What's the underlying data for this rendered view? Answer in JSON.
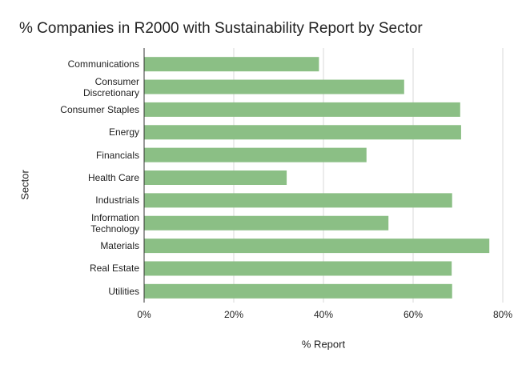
{
  "chart_data": {
    "type": "bar",
    "orientation": "horizontal",
    "title": "% Companies in R2000 with Sustainability Report by Sector",
    "x_label": "% Report",
    "y_label": "Sector",
    "categories": [
      "Communications",
      "Consumer Discretionary",
      "Consumer Staples",
      "Energy",
      "Financials",
      "Health Care",
      "Industrials",
      "Information Technology",
      "Materials",
      "Real Estate",
      "Utilities"
    ],
    "values": [
      39,
      58,
      70.5,
      70.7,
      49.6,
      31.8,
      68.7,
      54.5,
      77,
      68.6,
      68.7
    ],
    "color": "#8bbf85",
    "xlim": [
      0,
      80
    ],
    "xticks": [
      {
        "value": 0,
        "label": "0%"
      },
      {
        "value": 20,
        "label": "20%"
      },
      {
        "value": 40,
        "label": "40%"
      },
      {
        "value": 60,
        "label": "60%"
      },
      {
        "value": 80,
        "label": "80%"
      }
    ],
    "grid": true
  }
}
